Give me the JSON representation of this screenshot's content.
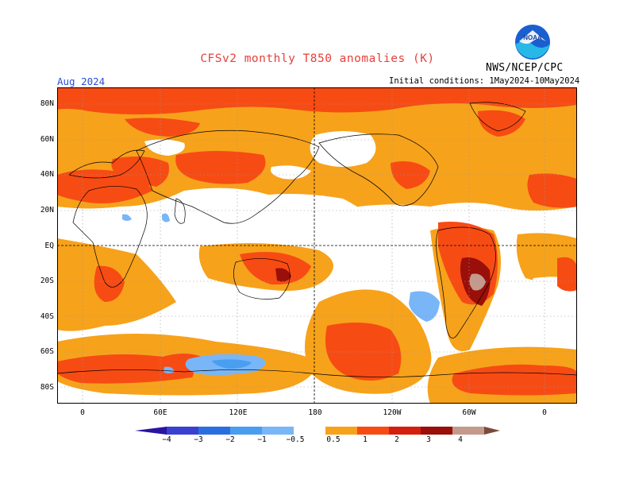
{
  "header": {
    "title": "CFSv2 monthly T850 anomalies (K)",
    "agency": "NWS/NCEP/CPC",
    "month": "Aug 2024",
    "initial_conditions": "Initial conditions: 1May2024-10May2024",
    "logo_text": "NOAA"
  },
  "map": {
    "lat_labels": [
      "80N",
      "60N",
      "40N",
      "20N",
      "EQ",
      "20S",
      "40S",
      "60S",
      "80S"
    ],
    "lon_labels": [
      "0",
      "60E",
      "120E",
      "180",
      "120W",
      "60W",
      "0"
    ]
  },
  "colorbar": {
    "labels": [
      "−4",
      "−3",
      "−2",
      "−1",
      "−0.5",
      "0.5",
      "1",
      "2",
      "3",
      "4"
    ],
    "colors": {
      "lt_m4": "#2a14a0",
      "m4_m3": "#3a40d0",
      "m3_m2": "#2a6fe0",
      "m2_m1": "#4a9ef0",
      "m1_m05": "#78b6f8",
      "neutral": "#ffffff",
      "p05_p1": "#f7a21b",
      "p1_p2": "#f74b14",
      "p2_p3": "#d51f0e",
      "p3_p4": "#9a0f0a",
      "p4_p5": "#c49a8c",
      "gt_p5": "#7a4a3a"
    }
  }
}
